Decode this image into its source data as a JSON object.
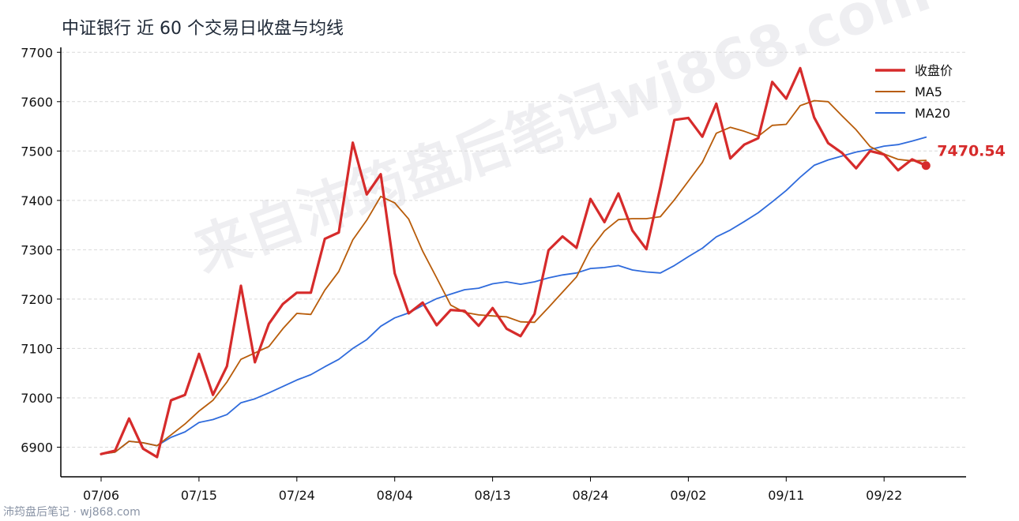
{
  "title": "中证银行 近 60 个交易日收盘与均线",
  "watermark": "来自沛筠盘后笔记wj868.com",
  "footer": "沛筠盘后笔记 · wj868.com",
  "last_value_label": "7470.54",
  "colors": {
    "close": "#d62b2b",
    "ma5": "#b85c0a",
    "ma20": "#2f6bdc",
    "grid": "#d9d9d9"
  },
  "chart_data": {
    "type": "line",
    "title": "中证银行 近 60 个交易日收盘与均线",
    "xlabel": "",
    "ylabel": "",
    "ylim": [
      6840,
      7710
    ],
    "yticks": [
      6900,
      7000,
      7100,
      7200,
      7300,
      7400,
      7500,
      7600,
      7700
    ],
    "xtick_labels": [
      "07/06",
      "07/15",
      "07/24",
      "08/04",
      "08/13",
      "08/24",
      "09/02",
      "09/11",
      "09/22"
    ],
    "xtick_indices": [
      0,
      7,
      14,
      21,
      28,
      35,
      42,
      49,
      56
    ],
    "legend_position": "top-right",
    "grid": true,
    "series": [
      {
        "name": "收盘价",
        "values": [
          6886,
          6893,
          6958,
          6897,
          6880,
          6995,
          7006,
          7089,
          7006,
          7064,
          7227,
          7072,
          7150,
          7190,
          7213,
          7213,
          7322,
          7335,
          7517,
          7412,
          7453,
          7252,
          7171,
          7193,
          7147,
          7178,
          7176,
          7146,
          7182,
          7140,
          7125,
          7170,
          7299,
          7327,
          7304,
          7403,
          7356,
          7414,
          7339,
          7301,
          7427,
          7563,
          7567,
          7529,
          7596,
          7485,
          7513,
          7526,
          7640,
          7606,
          7668,
          7568,
          7516,
          7496,
          7465,
          7500,
          7493,
          7461,
          7483,
          7470.54
        ]
      },
      {
        "name": "MA5",
        "values": [
          6886,
          6890,
          6912,
          6909,
          6903,
          6925,
          6947,
          6973,
          6995,
          7032,
          7078,
          7091,
          7104,
          7140,
          7171,
          7169,
          7218,
          7256,
          7320,
          7360,
          7408,
          7395,
          7362,
          7297,
          7243,
          7188,
          7173,
          7168,
          7166,
          7164,
          7154,
          7153,
          7183,
          7214,
          7245,
          7301,
          7338,
          7361,
          7363,
          7363,
          7367,
          7401,
          7439,
          7477,
          7536,
          7548,
          7540,
          7530,
          7552,
          7554,
          7592,
          7602,
          7600,
          7571,
          7543,
          7509,
          7494,
          7483,
          7480,
          7481
        ]
      },
      {
        "name": "MA20",
        "values": [
          6886,
          6890,
          6912,
          6909,
          6903,
          6920,
          6931,
          6950,
          6956,
          6966,
          6990,
          6998,
          7010,
          7023,
          7036,
          7047,
          7063,
          7078,
          7100,
          7118,
          7145,
          7162,
          7172,
          7187,
          7201,
          7210,
          7219,
          7222,
          7231,
          7235,
          7230,
          7235,
          7243,
          7249,
          7253,
          7262,
          7264,
          7268,
          7259,
          7255,
          7253,
          7268,
          7286,
          7303,
          7326,
          7340,
          7357,
          7375,
          7397,
          7420,
          7447,
          7471,
          7482,
          7490,
          7498,
          7503,
          7510,
          7513,
          7520,
          7528
        ]
      }
    ]
  }
}
